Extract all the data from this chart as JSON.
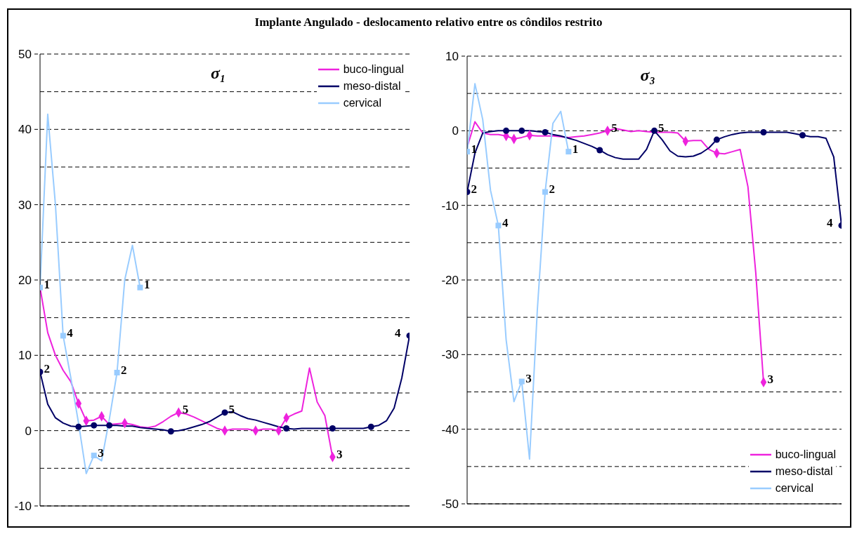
{
  "chart_data": [
    {
      "type": "line",
      "title": "Implante Angulado - deslocamento relativo entre os côndilos restrito",
      "subtitle": "σ₁",
      "legend": "top right",
      "grid": "y",
      "tick_labels": "y",
      "categories": [
        null,
        null,
        null,
        null,
        null,
        null,
        null,
        null,
        null,
        null,
        null,
        null,
        null,
        null,
        null,
        null,
        null,
        null,
        null,
        null,
        null,
        null,
        null,
        null,
        null,
        null,
        null,
        null,
        null,
        null,
        null,
        null,
        null,
        null,
        null,
        null,
        null,
        null,
        null,
        null,
        null,
        null,
        null,
        null,
        null,
        null,
        null,
        null,
        null
      ],
      "ylim": [
        -10,
        50
      ],
      "yticks": [
        -10,
        {
          "value": -5,
          "label": null
        },
        0,
        {
          "value": 5,
          "label": null
        },
        10,
        {
          "value": 15,
          "label": null
        },
        20,
        {
          "value": 25,
          "label": null
        },
        30,
        {
          "value": 35,
          "label": null
        },
        40,
        {
          "value": 45,
          "label": null
        },
        50
      ],
      "series": [
        {
          "name": "buco-lingual",
          "type": "line",
          "color": "#ee22dd",
          "values": [
            19,
            13,
            10,
            8,
            6.5,
            3.6,
            1.3,
            1.4,
            1.9,
            0.8,
            0.9,
            1.0,
            0.8,
            0.5,
            0.4,
            0.6,
            1.2,
            1.9,
            2.4,
            2.2,
            1.8,
            1.3,
            0.8,
            0.3,
            0,
            0.2,
            0.2,
            0.2,
            0,
            0.2,
            0.2,
            0,
            1.7,
            2.2,
            2.6,
            8.3,
            3.8,
            2.0,
            -3.5,
            null,
            null,
            null,
            null,
            null,
            null,
            null,
            null,
            null,
            null
          ]
        },
        {
          "name": "meso-distal",
          "type": "line",
          "color": "#000066",
          "values": [
            7.8,
            3.5,
            1.7,
            1.0,
            0.6,
            0.5,
            0.6,
            0.7,
            0.7,
            0.7,
            0.7,
            0.6,
            0.6,
            0.4,
            0.3,
            0.2,
            0.1,
            -0.1,
            0,
            0.2,
            0.5,
            0.8,
            1.2,
            1.8,
            2.4,
            2.5,
            2.0,
            1.6,
            1.4,
            1.1,
            0.8,
            0.5,
            0.3,
            0.2,
            0.3,
            0.3,
            0.3,
            0.3,
            0.3,
            0.3,
            0.3,
            0.3,
            0.3,
            0.5,
            0.7,
            1.3,
            3,
            7,
            12.6
          ]
        },
        {
          "name": "cervical",
          "type": "line",
          "color": "#99ccff",
          "values": [
            19,
            42,
            30,
            12.6,
            7,
            1,
            -5.7,
            -3.3,
            -4,
            1.5,
            7.7,
            20,
            24.6,
            19,
            null,
            null,
            null,
            null,
            null,
            null,
            null,
            null,
            null,
            null,
            null,
            null,
            null,
            null,
            null,
            null,
            null,
            null,
            null,
            null,
            null,
            null,
            null,
            null,
            null,
            null,
            null,
            null,
            null,
            null,
            null,
            null,
            null,
            null,
            null
          ]
        },
        {
          "type": "scatter",
          "marker": "diamond",
          "color": "#ee22dd",
          "values": [
            null,
            null,
            null,
            null,
            null,
            3.6,
            1.3,
            null,
            1.9,
            null,
            null,
            1.0,
            null,
            null,
            null,
            null,
            null,
            null,
            null,
            null,
            null,
            null,
            null,
            null,
            0,
            null,
            null,
            null,
            0,
            null,
            null,
            0,
            1.7,
            null,
            null,
            null,
            null,
            null,
            null,
            null,
            null,
            null,
            null,
            null,
            null,
            null,
            null,
            null,
            null
          ]
        },
        {
          "name": "5",
          "type": "scatter",
          "marker": "diamond",
          "color": "#ee22dd",
          "values": [
            null,
            null,
            null,
            null,
            null,
            null,
            null,
            null,
            null,
            null,
            null,
            null,
            null,
            null,
            null,
            null,
            null,
            null,
            2.4,
            null,
            null,
            null,
            null,
            null,
            null,
            null,
            null,
            null,
            null,
            null,
            null,
            null,
            null,
            null,
            null,
            null,
            null,
            null,
            null,
            null,
            null,
            null,
            null,
            null,
            null,
            null,
            null,
            null,
            null
          ]
        },
        {
          "name": "3",
          "type": "scatter",
          "marker": "diamond",
          "color": "#ee22dd",
          "values": [
            null,
            null,
            null,
            null,
            null,
            null,
            null,
            null,
            null,
            null,
            null,
            null,
            null,
            null,
            null,
            null,
            null,
            null,
            null,
            null,
            null,
            null,
            null,
            null,
            null,
            null,
            null,
            null,
            null,
            null,
            null,
            null,
            null,
            null,
            null,
            null,
            null,
            null,
            -3.5,
            null,
            null,
            null,
            null,
            null,
            null,
            null,
            null,
            null,
            null
          ]
        },
        {
          "type": "scatter",
          "marker": "circle",
          "color": "#000066",
          "values": [
            null,
            null,
            null,
            null,
            null,
            0.5,
            null,
            0.7,
            null,
            0.7,
            null,
            null,
            null,
            null,
            null,
            null,
            null,
            -0.1,
            null,
            null,
            null,
            null,
            null,
            null,
            null,
            null,
            null,
            null,
            null,
            null,
            null,
            null,
            0.3,
            null,
            null,
            null,
            null,
            null,
            0.3,
            null,
            null,
            null,
            null,
            0.5,
            null,
            null,
            null,
            null,
            null
          ]
        },
        {
          "name": "2",
          "type": "scatter",
          "marker": "circle",
          "color": "#000066",
          "values": [
            7.8,
            null,
            null,
            null,
            null,
            null,
            null,
            null,
            null,
            null,
            null,
            null,
            null,
            null,
            null,
            null,
            null,
            null,
            null,
            null,
            null,
            null,
            null,
            null,
            null,
            null,
            null,
            null,
            null,
            null,
            null,
            null,
            null,
            null,
            null,
            null,
            null,
            null,
            null,
            null,
            null,
            null,
            null,
            null,
            null,
            null,
            null,
            null,
            null
          ]
        },
        {
          "name": "5",
          "type": "scatter",
          "marker": "circle",
          "color": "#000066",
          "values": [
            null,
            null,
            null,
            null,
            null,
            null,
            null,
            null,
            null,
            null,
            null,
            null,
            null,
            null,
            null,
            null,
            null,
            null,
            null,
            null,
            null,
            null,
            null,
            null,
            2.4,
            null,
            null,
            null,
            null,
            null,
            null,
            null,
            null,
            null,
            null,
            null,
            null,
            null,
            null,
            null,
            null,
            null,
            null,
            null,
            null,
            null,
            null,
            null,
            null
          ]
        },
        {
          "name": "4",
          "type": "scatter",
          "marker": "circle",
          "color": "#000066",
          "values": [
            null,
            null,
            null,
            null,
            null,
            null,
            null,
            null,
            null,
            null,
            null,
            null,
            null,
            null,
            null,
            null,
            null,
            null,
            null,
            null,
            null,
            null,
            null,
            null,
            null,
            null,
            null,
            null,
            null,
            null,
            null,
            null,
            null,
            null,
            null,
            null,
            null,
            null,
            null,
            null,
            null,
            null,
            null,
            null,
            null,
            null,
            null,
            null,
            12.6
          ]
        },
        {
          "name": "1",
          "type": "scatter",
          "marker": "square",
          "color": "#99ccff",
          "values": [
            19,
            null,
            null,
            null,
            null,
            null,
            null,
            null,
            null,
            null,
            null,
            null,
            null,
            19,
            null,
            null,
            null,
            null,
            null,
            null,
            null,
            null,
            null,
            null,
            null,
            null,
            null,
            null,
            null,
            null,
            null,
            null,
            null,
            null,
            null,
            null,
            null,
            null,
            null,
            null,
            null,
            null,
            null,
            null,
            null,
            null,
            null,
            null,
            null
          ]
        },
        {
          "name": "4",
          "type": "scatter",
          "marker": "square",
          "color": "#99ccff",
          "values": [
            null,
            null,
            null,
            12.6,
            null,
            null,
            null,
            null,
            null,
            null,
            null,
            null,
            null,
            null,
            null,
            null,
            null,
            null,
            null,
            null,
            null,
            null,
            null,
            null,
            null,
            null,
            null,
            null,
            null,
            null,
            null,
            null,
            null,
            null,
            null,
            null,
            null,
            null,
            null,
            null,
            null,
            null,
            null,
            null,
            null,
            null,
            null,
            null,
            null
          ]
        },
        {
          "name": "3",
          "type": "scatter",
          "marker": "square",
          "color": "#99ccff",
          "values": [
            null,
            null,
            null,
            null,
            null,
            null,
            null,
            -3.3,
            null,
            null,
            null,
            null,
            null,
            null,
            null,
            null,
            null,
            null,
            null,
            null,
            null,
            null,
            null,
            null,
            null,
            null,
            null,
            null,
            null,
            null,
            null,
            null,
            null,
            null,
            null,
            null,
            null,
            null,
            null,
            null,
            null,
            null,
            null,
            null,
            null,
            null,
            null,
            null,
            null
          ]
        },
        {
          "name": "2",
          "type": "scatter",
          "marker": "square",
          "color": "#99ccff",
          "values": [
            null,
            null,
            null,
            null,
            null,
            null,
            null,
            null,
            null,
            null,
            7.7,
            null,
            null,
            null,
            null,
            null,
            null,
            null,
            null,
            null,
            null,
            null,
            null,
            null,
            null,
            null,
            null,
            null,
            null,
            null,
            null,
            null,
            null,
            null,
            null,
            null,
            null,
            null,
            null,
            null,
            null,
            null,
            null,
            null,
            null,
            null,
            null,
            null,
            null
          ]
        }
      ]
    },
    {
      "type": "line",
      "subtitle": "σ₃",
      "legend": "bottom right",
      "grid": "y",
      "tick_labels": "y",
      "categories": [
        null,
        null,
        null,
        null,
        null,
        null,
        null,
        null,
        null,
        null,
        null,
        null,
        null,
        null,
        null,
        null,
        null,
        null,
        null,
        null,
        null,
        null,
        null,
        null,
        null,
        null,
        null,
        null,
        null,
        null,
        null,
        null,
        null,
        null,
        null,
        null,
        null,
        null,
        null,
        null,
        null,
        null,
        null,
        null,
        null,
        null,
        null,
        null,
        null
      ],
      "ylim": [
        -50,
        10
      ],
      "yticks": [
        -50,
        {
          "value": -45,
          "label": null
        },
        -40,
        {
          "value": -35,
          "label": null
        },
        -30,
        {
          "value": -25,
          "label": null
        },
        -20,
        {
          "value": -15,
          "label": null
        },
        -10,
        {
          "value": -5,
          "label": null
        },
        0,
        {
          "value": 5,
          "label": null
        },
        10
      ],
      "series": [
        {
          "name": "buco-lingual",
          "type": "line",
          "color": "#ee22dd",
          "values": [
            -2.2,
            1.2,
            -0.3,
            -0.5,
            -0.5,
            -0.7,
            -1.1,
            -0.9,
            -0.6,
            -0.7,
            -0.7,
            -0.7,
            -0.8,
            -0.9,
            -0.8,
            -0.7,
            -0.5,
            -0.3,
            0,
            0.3,
            0.1,
            -0.1,
            0,
            -0.1,
            -0.2,
            -0.2,
            -0.2,
            -0.3,
            -1.4,
            -1.3,
            -1.3,
            -2.5,
            -3,
            -3.1,
            -2.8,
            -2.5,
            -7.5,
            -19,
            -33.7,
            null,
            null,
            null,
            null,
            null,
            null,
            null,
            null,
            null,
            null
          ]
        },
        {
          "name": "meso-distal",
          "type": "line",
          "color": "#000066",
          "values": [
            -8.2,
            -3,
            -0.3,
            -0.1,
            0,
            0,
            0,
            0,
            0,
            -0.1,
            -0.2,
            -0.5,
            -0.7,
            -1,
            -1.3,
            -1.7,
            -2.1,
            -2.6,
            -3.2,
            -3.6,
            -3.8,
            -3.8,
            -3.8,
            -2.5,
            0,
            -1.2,
            -2.7,
            -3.4,
            -3.5,
            -3.4,
            -3,
            -2.3,
            -1.2,
            -0.8,
            -0.5,
            -0.3,
            -0.2,
            -0.2,
            -0.2,
            -0.2,
            -0.2,
            -0.2,
            -0.4,
            -0.6,
            -0.8,
            -0.8,
            -1.0,
            -3.5,
            -12.7
          ]
        },
        {
          "name": "cervical",
          "type": "line",
          "color": "#99ccff",
          "values": [
            -2.8,
            6.3,
            1.5,
            -8,
            -12.7,
            -28,
            -36.3,
            -33.6,
            -44,
            -24,
            -8.2,
            1,
            2.6,
            -2.8,
            null,
            null,
            null,
            null,
            null,
            null,
            null,
            null,
            null,
            null,
            null,
            null,
            null,
            null,
            null,
            null,
            null,
            null,
            null,
            null,
            null,
            null,
            null,
            null,
            null,
            null,
            null,
            null,
            null,
            null,
            null,
            null,
            null,
            null,
            null
          ]
        },
        {
          "type": "scatter",
          "marker": "diamond",
          "color": "#ee22dd",
          "values": [
            null,
            null,
            null,
            null,
            null,
            -0.7,
            -1.1,
            null,
            -0.6,
            null,
            null,
            null,
            null,
            null,
            null,
            null,
            null,
            null,
            null,
            null,
            null,
            null,
            null,
            null,
            null,
            null,
            null,
            null,
            -1.4,
            null,
            null,
            null,
            -3,
            null,
            null,
            null,
            null,
            null,
            null,
            null,
            null,
            null,
            null,
            null,
            null,
            null,
            null,
            null,
            null
          ]
        },
        {
          "name": "5",
          "type": "scatter",
          "marker": "diamond",
          "color": "#ee22dd",
          "values": [
            null,
            null,
            null,
            null,
            null,
            null,
            null,
            null,
            null,
            null,
            null,
            null,
            null,
            null,
            null,
            null,
            null,
            null,
            0,
            null,
            null,
            null,
            null,
            null,
            null,
            null,
            null,
            null,
            null,
            null,
            null,
            null,
            null,
            null,
            null,
            null,
            null,
            null,
            null,
            null,
            null,
            null,
            null,
            null,
            null,
            null,
            null,
            null,
            null
          ]
        },
        {
          "name": "3",
          "type": "scatter",
          "marker": "diamond",
          "color": "#ee22dd",
          "values": [
            null,
            null,
            null,
            null,
            null,
            null,
            null,
            null,
            null,
            null,
            null,
            null,
            null,
            null,
            null,
            null,
            null,
            null,
            null,
            null,
            null,
            null,
            null,
            null,
            null,
            null,
            null,
            null,
            null,
            null,
            null,
            null,
            null,
            null,
            null,
            null,
            null,
            null,
            -33.7,
            null,
            null,
            null,
            null,
            null,
            null,
            null,
            null,
            null,
            null
          ]
        },
        {
          "type": "scatter",
          "marker": "circle",
          "color": "#000066",
          "values": [
            null,
            null,
            null,
            null,
            null,
            0,
            null,
            0,
            null,
            null,
            -0.2,
            null,
            null,
            null,
            null,
            null,
            null,
            -2.6,
            null,
            null,
            null,
            null,
            null,
            null,
            null,
            null,
            null,
            null,
            null,
            null,
            null,
            null,
            -1.2,
            null,
            null,
            null,
            null,
            null,
            -0.2,
            null,
            null,
            null,
            null,
            -0.6,
            null,
            null,
            null,
            null,
            null
          ]
        },
        {
          "name": "2",
          "type": "scatter",
          "marker": "circle",
          "color": "#000066",
          "values": [
            -8.2,
            null,
            null,
            null,
            null,
            null,
            null,
            null,
            null,
            null,
            null,
            null,
            null,
            null,
            null,
            null,
            null,
            null,
            null,
            null,
            null,
            null,
            null,
            null,
            null,
            null,
            null,
            null,
            null,
            null,
            null,
            null,
            null,
            null,
            null,
            null,
            null,
            null,
            null,
            null,
            null,
            null,
            null,
            null,
            null,
            null,
            null,
            null,
            null
          ]
        },
        {
          "name": "5",
          "type": "scatter",
          "marker": "circle",
          "color": "#000066",
          "values": [
            null,
            null,
            null,
            null,
            null,
            null,
            null,
            null,
            null,
            null,
            null,
            null,
            null,
            null,
            null,
            null,
            null,
            null,
            null,
            null,
            null,
            null,
            null,
            null,
            0,
            null,
            null,
            null,
            null,
            null,
            null,
            null,
            null,
            null,
            null,
            null,
            null,
            null,
            null,
            null,
            null,
            null,
            null,
            null,
            null,
            null,
            null,
            null,
            null
          ]
        },
        {
          "name": "4",
          "type": "scatter",
          "marker": "circle",
          "color": "#000066",
          "values": [
            null,
            null,
            null,
            null,
            null,
            null,
            null,
            null,
            null,
            null,
            null,
            null,
            null,
            null,
            null,
            null,
            null,
            null,
            null,
            null,
            null,
            null,
            null,
            null,
            null,
            null,
            null,
            null,
            null,
            null,
            null,
            null,
            null,
            null,
            null,
            null,
            null,
            null,
            null,
            null,
            null,
            null,
            null,
            null,
            null,
            null,
            null,
            null,
            -12.7
          ]
        },
        {
          "name": "1",
          "type": "scatter",
          "marker": "square",
          "color": "#99ccff",
          "values": [
            -2.8,
            null,
            null,
            null,
            null,
            null,
            null,
            null,
            null,
            null,
            null,
            null,
            null,
            -2.8,
            null,
            null,
            null,
            null,
            null,
            null,
            null,
            null,
            null,
            null,
            null,
            null,
            null,
            null,
            null,
            null,
            null,
            null,
            null,
            null,
            null,
            null,
            null,
            null,
            null,
            null,
            null,
            null,
            null,
            null,
            null,
            null,
            null,
            null,
            null
          ]
        },
        {
          "name": "4",
          "type": "scatter",
          "marker": "square",
          "color": "#99ccff",
          "values": [
            null,
            null,
            null,
            null,
            -12.7,
            null,
            null,
            null,
            null,
            null,
            null,
            null,
            null,
            null,
            null,
            null,
            null,
            null,
            null,
            null,
            null,
            null,
            null,
            null,
            null,
            null,
            null,
            null,
            null,
            null,
            null,
            null,
            null,
            null,
            null,
            null,
            null,
            null,
            null,
            null,
            null,
            null,
            null,
            null,
            null,
            null,
            null,
            null,
            null
          ]
        },
        {
          "name": "3",
          "type": "scatter",
          "marker": "square",
          "color": "#99ccff",
          "values": [
            null,
            null,
            null,
            null,
            null,
            null,
            null,
            -33.6,
            null,
            null,
            null,
            null,
            null,
            null,
            null,
            null,
            null,
            null,
            null,
            null,
            null,
            null,
            null,
            null,
            null,
            null,
            null,
            null,
            null,
            null,
            null,
            null,
            null,
            null,
            null,
            null,
            null,
            null,
            null,
            null,
            null,
            null,
            null,
            null,
            null,
            null,
            null,
            null,
            null
          ]
        },
        {
          "name": "2",
          "type": "scatter",
          "marker": "square",
          "color": "#99ccff",
          "values": [
            null,
            null,
            null,
            null,
            null,
            null,
            null,
            null,
            null,
            null,
            -8.2,
            null,
            null,
            null,
            null,
            null,
            null,
            null,
            null,
            null,
            null,
            null,
            null,
            null,
            null,
            null,
            null,
            null,
            null,
            null,
            null,
            null,
            null,
            null,
            null,
            null,
            null,
            null,
            null,
            null,
            null,
            null,
            null,
            null,
            null,
            null,
            null,
            null,
            null
          ]
        }
      ]
    }
  ]
}
